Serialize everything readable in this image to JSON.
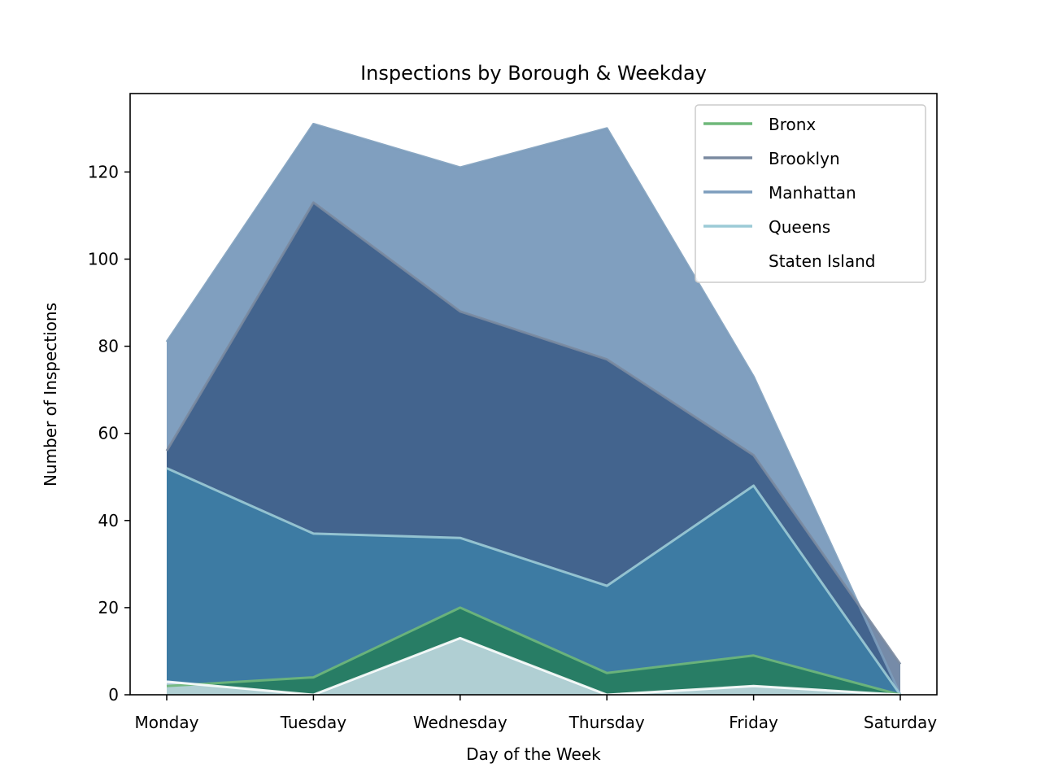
{
  "chart_data": {
    "type": "area",
    "title": "Inspections by Borough & Weekday",
    "xlabel": "Day of the Week",
    "ylabel": "Number of Inspections",
    "categories": [
      "Monday",
      "Tuesday",
      "Wednesday",
      "Thursday",
      "Friday",
      "Saturday"
    ],
    "ylim": [
      0,
      138
    ],
    "yticks": [
      0,
      20,
      40,
      60,
      80,
      100,
      120
    ],
    "legend_position": "top-right",
    "grid": false,
    "series": [
      {
        "name": "Bronx",
        "values": [
          2,
          4,
          20,
          5,
          9,
          0
        ],
        "color": "#1a7f3c",
        "line_color": "#6fb87a"
      },
      {
        "name": "Brooklyn",
        "values": [
          56,
          113,
          88,
          77,
          55,
          7
        ],
        "color": "#1b3e6e",
        "line_color": "#7a8aa0"
      },
      {
        "name": "Manhattan",
        "values": [
          81,
          131,
          121,
          130,
          73,
          0
        ],
        "color": "#2c5f94",
        "line_color": "#7d9dbd"
      },
      {
        "name": "Queens",
        "values": [
          52,
          37,
          36,
          25,
          48,
          0
        ],
        "color": "#3b8ab0",
        "line_color": "#9ccbd6"
      },
      {
        "name": "Staten Island",
        "values": [
          3,
          0,
          13,
          0,
          2,
          0
        ],
        "color": "#c8dde6",
        "line_color": "#ffffff"
      }
    ]
  }
}
